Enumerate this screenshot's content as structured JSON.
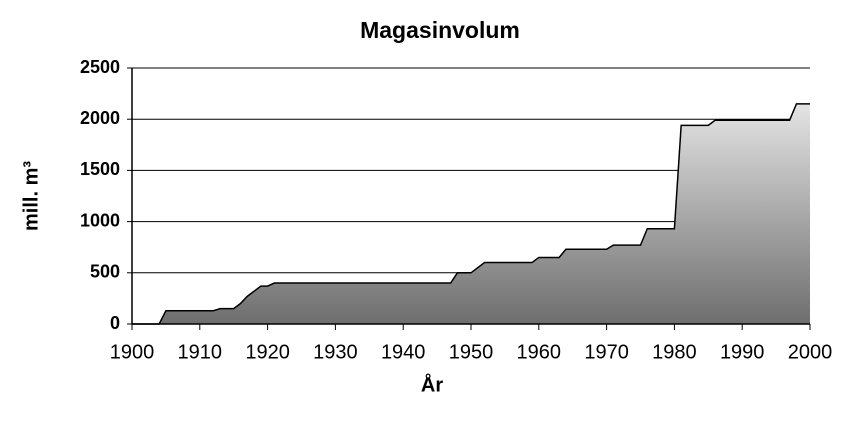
{
  "chart_data": {
    "type": "area",
    "title": "Magasinvolum",
    "x_label": "År",
    "y_label": "mill. m³",
    "x": [
      1900,
      1904,
      1905,
      1912,
      1913,
      1915,
      1916,
      1917,
      1918,
      1919,
      1920,
      1921,
      1947,
      1948,
      1950,
      1952,
      1959,
      1960,
      1963,
      1964,
      1970,
      1971,
      1975,
      1976,
      1980,
      1981,
      1985,
      1986,
      1997,
      1998,
      2000
    ],
    "values": [
      0,
      0,
      130,
      130,
      150,
      150,
      200,
      270,
      320,
      370,
      370,
      400,
      400,
      500,
      500,
      600,
      600,
      650,
      650,
      730,
      730,
      770,
      770,
      930,
      930,
      1940,
      1940,
      1990,
      1990,
      2150,
      2150
    ],
    "xlim": [
      1900,
      2000
    ],
    "xticks": [
      1900,
      1910,
      1920,
      1930,
      1940,
      1950,
      1960,
      1970,
      1980,
      1990,
      2000
    ],
    "ylim": [
      0,
      2500
    ],
    "yticks": [
      0,
      500,
      1000,
      1500,
      2000,
      2500
    ],
    "grid": true
  }
}
